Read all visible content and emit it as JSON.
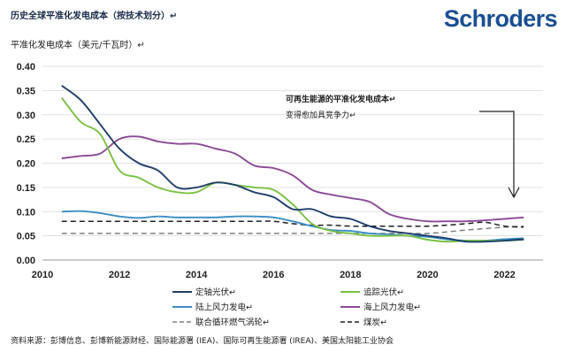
{
  "header": {
    "title": "历史全球平准化发电成本（按技术划分）↵",
    "logo": "Schroders"
  },
  "source_note": "资料来源：彭博信息、彭博新能源财经、国际能源署 (IEA)、国际可再生能源署 (IREA)、美国太阳能工业协会",
  "chart_data": {
    "type": "line",
    "title": "历史全球平准化发电成本（按技术划分）",
    "ylabel": "平准化发电成本（美元/千瓦时）↵",
    "xlabel": "",
    "xlim": [
      2010,
      2023
    ],
    "ylim": [
      0,
      0.4
    ],
    "x_ticks": [
      2010,
      2012,
      2014,
      2016,
      2018,
      2020,
      2022
    ],
    "y_ticks": [
      0.0,
      0.05,
      0.1,
      0.15,
      0.2,
      0.25,
      0.3,
      0.35,
      0.4
    ],
    "x": [
      2010.5,
      2011.0,
      2011.5,
      2012.0,
      2012.5,
      2013.0,
      2013.5,
      2014.0,
      2014.5,
      2015.0,
      2015.5,
      2016.0,
      2016.5,
      2017.0,
      2017.5,
      2018.0,
      2018.5,
      2019.0,
      2019.5,
      2020.0,
      2020.5,
      2021.0,
      2021.5,
      2022.0,
      2022.5
    ],
    "series": [
      {
        "name": "定轴光伏↵",
        "color": "#1f3e6b",
        "style": "solid",
        "values": [
          0.36,
          0.33,
          0.28,
          0.23,
          0.2,
          0.185,
          0.15,
          0.15,
          0.16,
          0.155,
          0.14,
          0.13,
          0.105,
          0.105,
          0.09,
          0.085,
          0.07,
          0.06,
          0.055,
          0.05,
          0.045,
          0.038,
          0.038,
          0.04,
          0.043
        ]
      },
      {
        "name": "追踪光伏↵",
        "color": "#7ac142",
        "style": "solid",
        "values": [
          0.335,
          0.285,
          0.26,
          0.185,
          0.17,
          0.15,
          0.14,
          0.14,
          0.16,
          0.155,
          0.15,
          0.145,
          0.115,
          0.075,
          0.06,
          0.055,
          0.05,
          0.05,
          0.05,
          0.042,
          0.038,
          0.04,
          0.04,
          0.04,
          0.042
        ]
      },
      {
        "name": "陆上风力发电↵",
        "color": "#3c8ec3",
        "style": "solid",
        "values": [
          0.1,
          0.101,
          0.097,
          0.09,
          0.087,
          0.09,
          0.088,
          0.088,
          0.088,
          0.09,
          0.09,
          0.088,
          0.08,
          0.07,
          0.062,
          0.06,
          0.055,
          0.053,
          0.05,
          0.048,
          0.043,
          0.04,
          0.04,
          0.043,
          0.045
        ]
      },
      {
        "name": "海上风力发电↵",
        "color": "#8b4a96",
        "style": "solid",
        "values": [
          0.21,
          0.215,
          0.22,
          0.25,
          0.255,
          0.245,
          0.24,
          0.24,
          0.23,
          0.22,
          0.195,
          0.19,
          0.175,
          0.145,
          0.135,
          0.128,
          0.12,
          0.095,
          0.085,
          0.08,
          0.08,
          0.08,
          0.082,
          0.085,
          0.088
        ]
      },
      {
        "name": "联合循环燃气涡轮↵",
        "color": "#7f7f7f",
        "style": "dashed",
        "values": [
          0.055,
          0.055,
          0.055,
          0.055,
          0.055,
          0.055,
          0.055,
          0.055,
          0.055,
          0.055,
          0.055,
          0.055,
          0.055,
          0.055,
          0.055,
          0.055,
          0.055,
          0.055,
          0.055,
          0.055,
          0.058,
          0.062,
          0.065,
          0.068,
          0.07
        ]
      },
      {
        "name": "煤炭↵",
        "color": "#1f1f1f",
        "style": "dashed",
        "values": [
          0.08,
          0.08,
          0.08,
          0.08,
          0.08,
          0.08,
          0.08,
          0.08,
          0.08,
          0.08,
          0.08,
          0.08,
          0.075,
          0.072,
          0.072,
          0.07,
          0.07,
          0.07,
          0.07,
          0.07,
          0.072,
          0.075,
          0.078,
          0.07,
          0.068
        ]
      }
    ],
    "annotation": {
      "title": "可再生能源的平准化发电成本↵",
      "subtitle": "变得愈加具竞争力↵"
    }
  }
}
